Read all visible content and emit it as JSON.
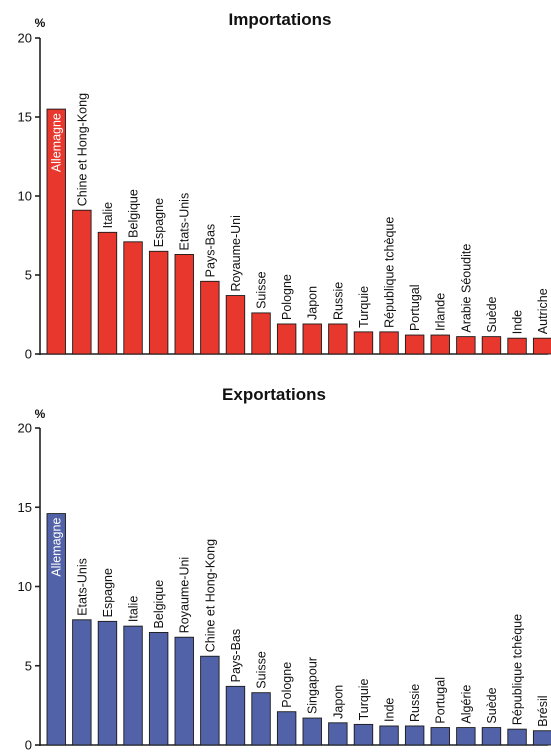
{
  "chart_data": [
    {
      "type": "bar",
      "title": "Importations",
      "unit": "%",
      "ylim": [
        0,
        20
      ],
      "yticks": [
        "0",
        "5",
        "10",
        "15",
        "20"
      ],
      "bar_color": "#e8382e",
      "categories": [
        "Allemagne",
        "Chine et Hong-Kong",
        "Italie",
        "Belgique",
        "Espagne",
        "Etats-Unis",
        "Pays-Bas",
        "Royaume-Uni",
        "Suisse",
        "Pologne",
        "Japon",
        "Russie",
        "Turquie",
        "République tchèque",
        "Portugal",
        "Irlande",
        "Arabie Séoudite",
        "Suède",
        "Inde",
        "Autriche"
      ],
      "values": [
        15.5,
        9.1,
        7.7,
        7.1,
        6.5,
        6.3,
        4.6,
        3.7,
        2.6,
        1.9,
        1.9,
        1.9,
        1.4,
        1.4,
        1.2,
        1.2,
        1.1,
        1.1,
        1.0,
        1.0
      ]
    },
    {
      "type": "bar",
      "title": "Exportations",
      "unit": "%",
      "ylim": [
        0,
        20
      ],
      "yticks": [
        "0",
        "5",
        "10",
        "15",
        "20"
      ],
      "bar_color": "#5162a8",
      "categories": [
        "Allemagne",
        "Etats-Unis",
        "Espagne",
        "Italie",
        "Belgique",
        "Royaume-Uni",
        "Chine et Hong-Kong",
        "Pays-Bas",
        "Suisse",
        "Pologne",
        "Singapour",
        "Japon",
        "Turquie",
        "Inde",
        "Russie",
        "Portugal",
        "Algérie",
        "Suède",
        "République tchèque",
        "Brésil"
      ],
      "values": [
        14.6,
        7.9,
        7.8,
        7.5,
        7.1,
        6.8,
        5.6,
        3.7,
        3.3,
        2.1,
        1.7,
        1.4,
        1.3,
        1.2,
        1.2,
        1.1,
        1.1,
        1.1,
        1.0,
        0.9
      ]
    }
  ]
}
